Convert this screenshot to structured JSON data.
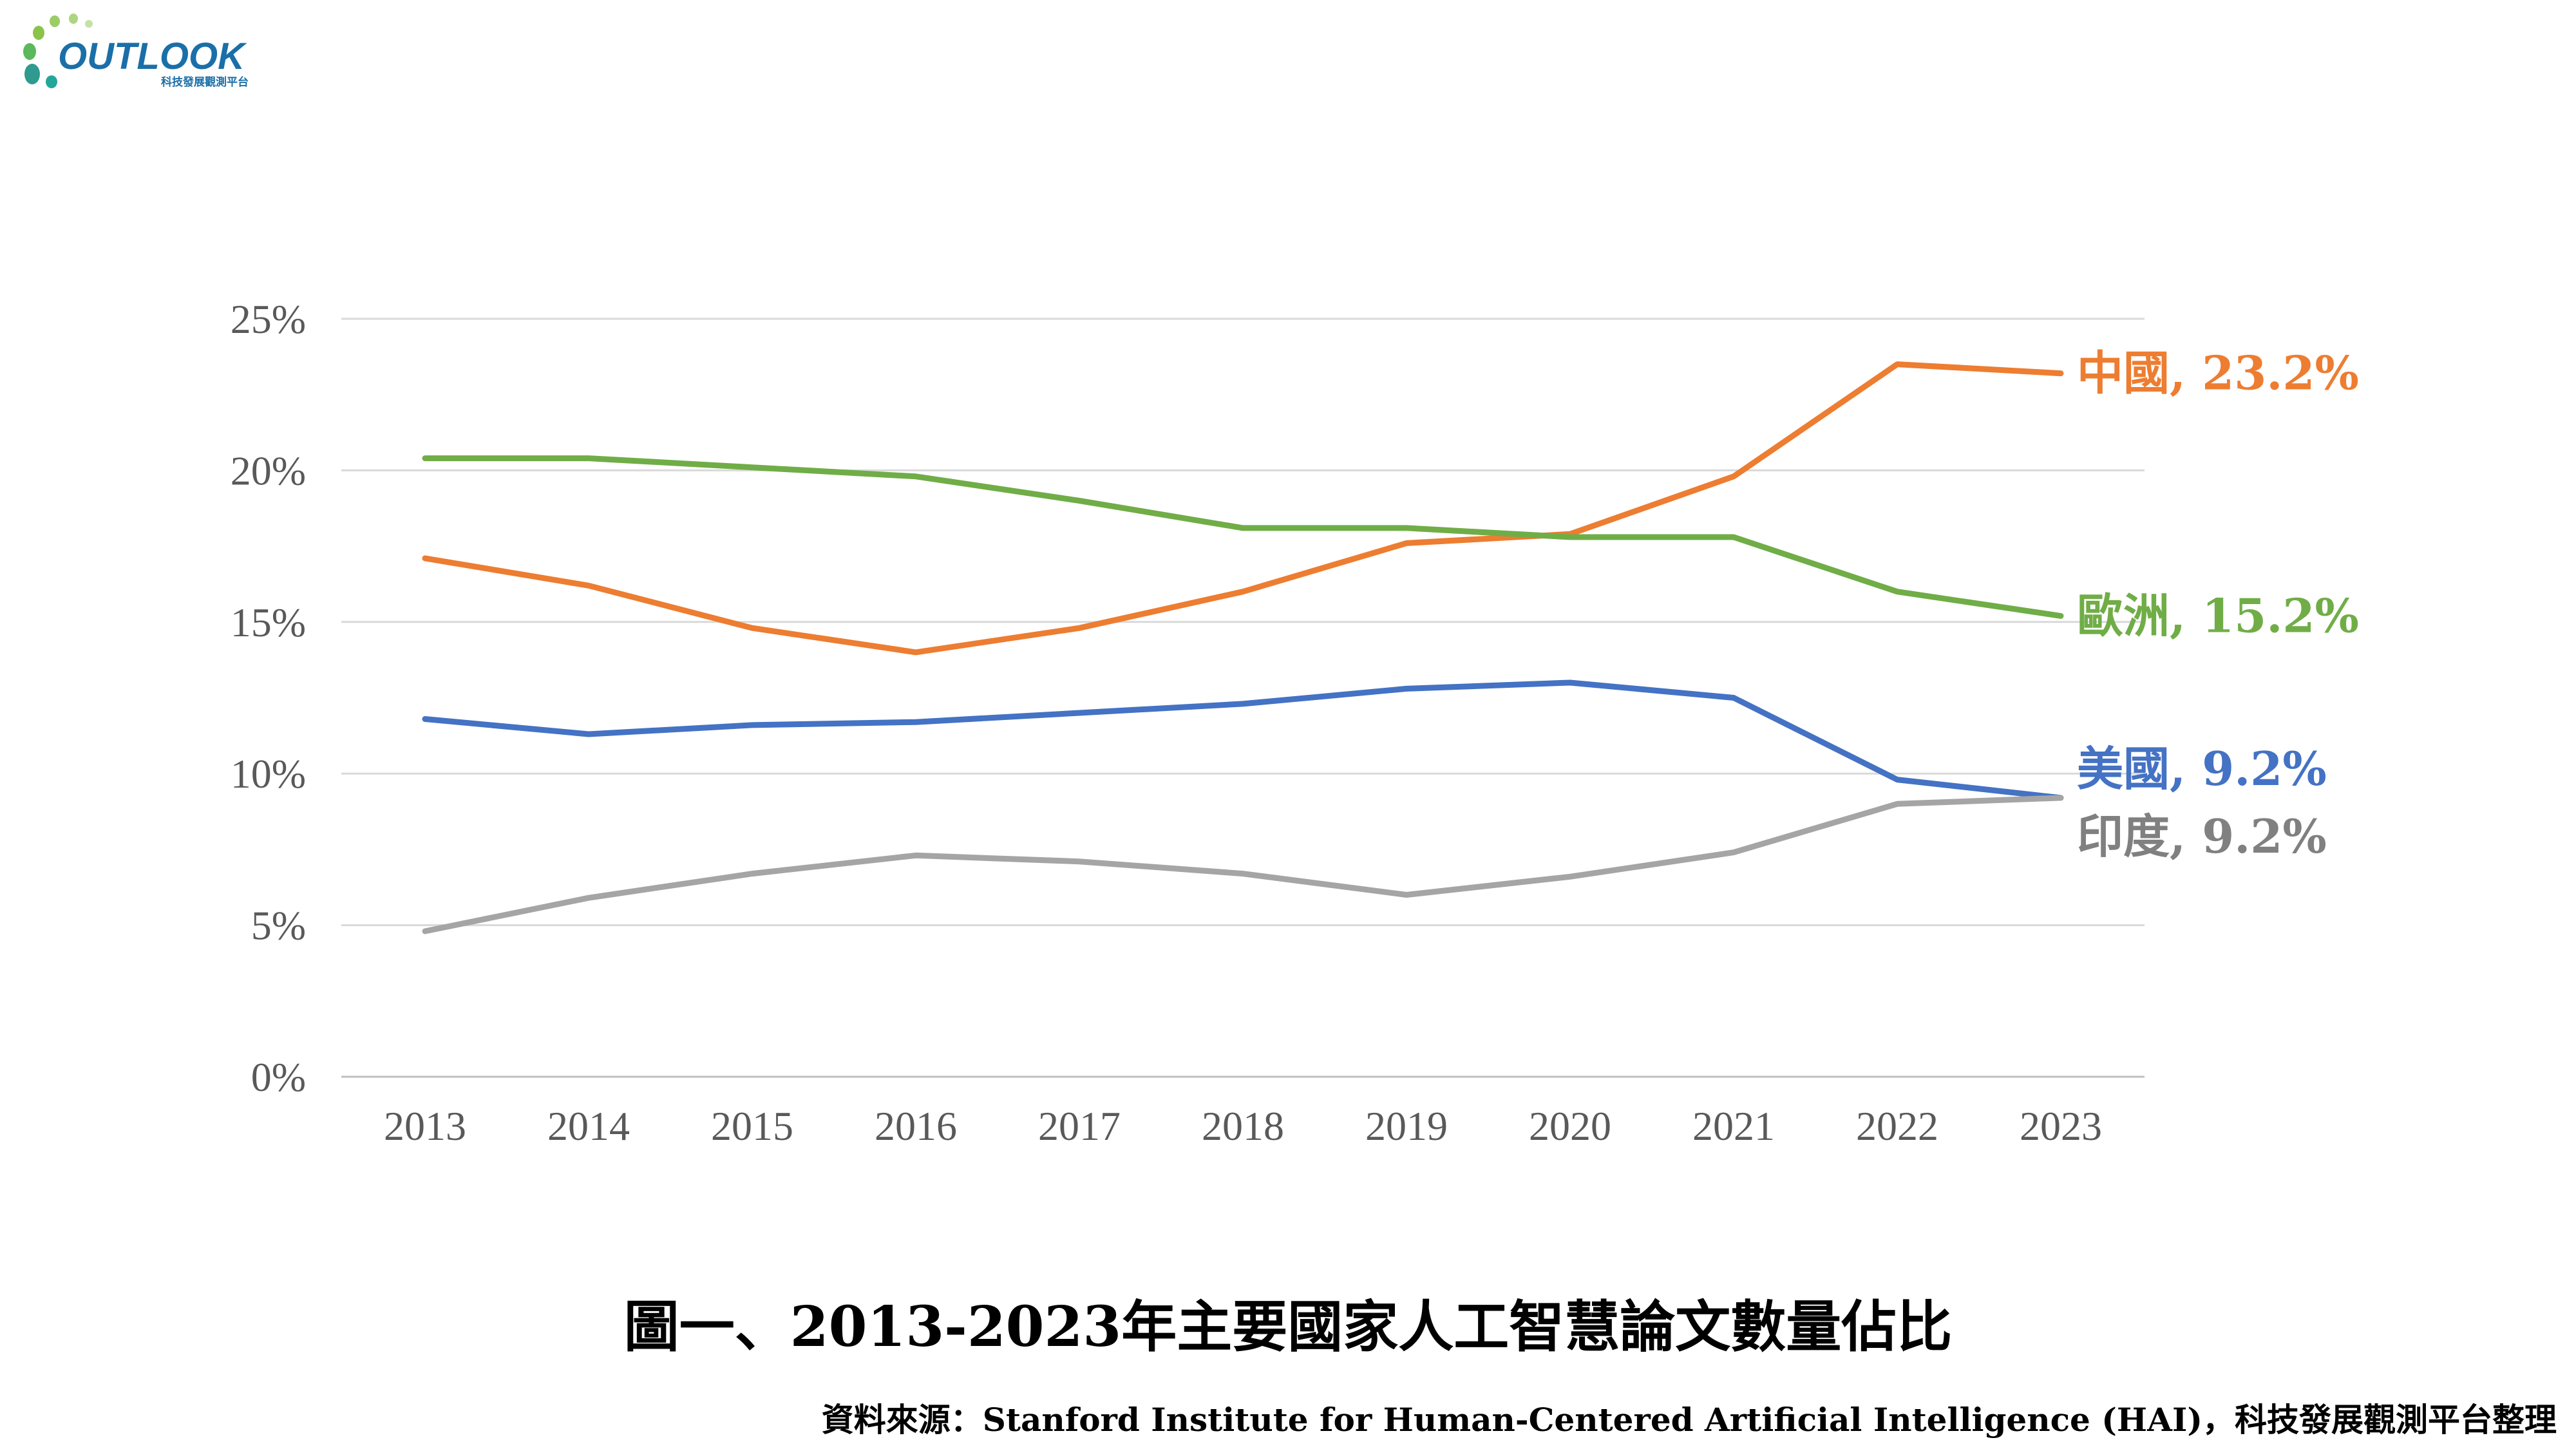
{
  "logo": {
    "text": "OUTLOOK",
    "subtitle": "科技發展觀測平台"
  },
  "chart_data": {
    "type": "line",
    "title": "圖一、2013-2023年主要國家人工智慧論文數量佔比",
    "xlabel": "",
    "ylabel": "",
    "x": [
      "2013",
      "2014",
      "2015",
      "2016",
      "2017",
      "2018",
      "2019",
      "2020",
      "2021",
      "2022",
      "2023"
    ],
    "ylim": [
      0,
      25
    ],
    "y_ticks": [
      "0%",
      "5%",
      "10%",
      "15%",
      "20%",
      "25%"
    ],
    "grid": true,
    "legend": "end-of-line labels",
    "series": [
      {
        "name": "中國",
        "end_label": "中國, 23.2%",
        "color": "#ED7D31",
        "values": [
          17.1,
          16.2,
          14.8,
          14.0,
          14.8,
          16.0,
          17.6,
          17.9,
          19.8,
          23.5,
          23.2
        ]
      },
      {
        "name": "歐洲",
        "end_label": "歐洲, 15.2%",
        "color": "#70AD47",
        "values": [
          20.4,
          20.4,
          20.1,
          19.8,
          19.0,
          18.1,
          18.1,
          17.8,
          17.8,
          16.0,
          15.2
        ]
      },
      {
        "name": "美國",
        "end_label": "美國, 9.2%",
        "color": "#4472C4",
        "values": [
          11.8,
          11.3,
          11.6,
          11.7,
          12.0,
          12.3,
          12.8,
          13.0,
          12.5,
          9.8,
          9.2
        ]
      },
      {
        "name": "印度",
        "end_label": "印度, 9.2%",
        "color": "#A5A5A5",
        "values": [
          4.8,
          5.9,
          6.7,
          7.3,
          7.1,
          6.7,
          6.0,
          6.6,
          7.4,
          9.0,
          9.2
        ]
      }
    ]
  },
  "source": "資料來源：Stanford Institute for Human-Centered Artificial Intelligence (HAI)，科技發展觀測平台整理"
}
